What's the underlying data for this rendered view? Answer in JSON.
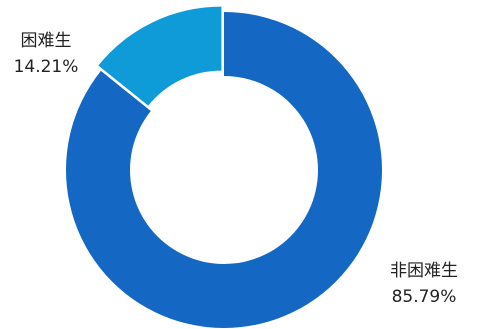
{
  "chart_data": {
    "type": "pie",
    "variant": "donut",
    "title": "",
    "slices": [
      {
        "category": "困难生",
        "value": 14.21,
        "display_value": "14.21%",
        "color": "#0F9AD8"
      },
      {
        "category": "非困难生",
        "value": 85.79,
        "display_value": "85.79%",
        "color": "#1468C4"
      }
    ],
    "start_angle_deg": 0,
    "direction": "counterclockwise",
    "exploded_slice": "困难生",
    "legend": "none",
    "data_labels": "outside"
  }
}
